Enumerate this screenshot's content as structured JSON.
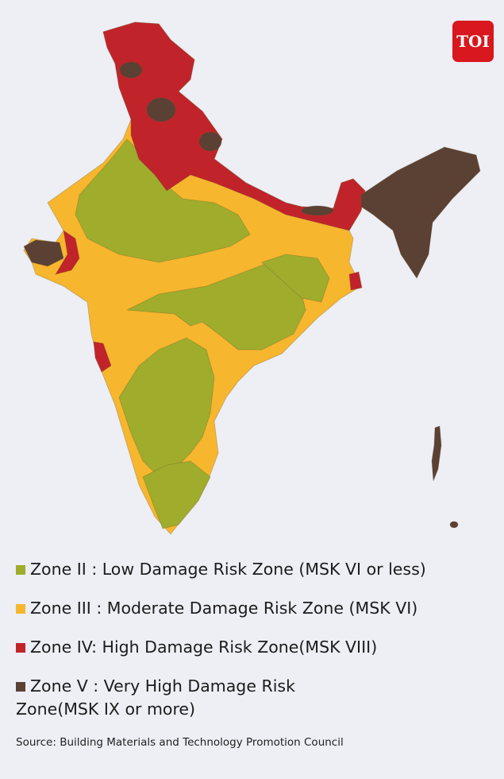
{
  "logo": {
    "text": "TOI",
    "color": "#d8171e"
  },
  "map": {
    "zone_colors": {
      "zone_ii": "#9fac2c",
      "zone_iii": "#f6b62e",
      "zone_iv": "#c1232b",
      "zone_v": "#5b4034"
    }
  },
  "legend": {
    "items": [
      {
        "label": "Zone II : Low Damage Risk Zone (MSK VI or less)",
        "color": "#9fac2c"
      },
      {
        "label": "Zone III : Moderate Damage Risk Zone (MSK VI)",
        "color": "#f6b62e"
      },
      {
        "label": "Zone IV: High Damage Risk Zone(MSK VIII)",
        "color": "#c1232b"
      },
      {
        "label": "Zone V : Very High Damage Risk Zone(MSK IX or more)",
        "color": "#5b4034"
      }
    ]
  },
  "source": "Source: Building Materials and Technology Promotion Council"
}
